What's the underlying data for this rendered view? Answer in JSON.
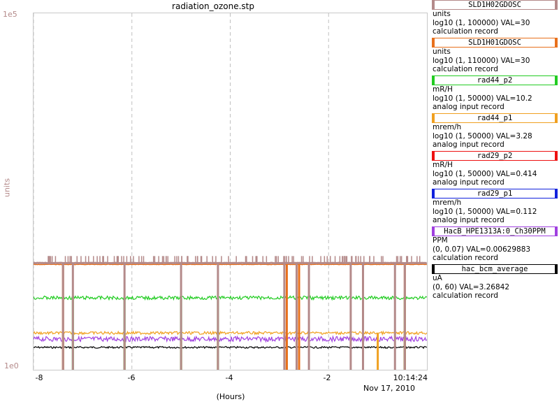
{
  "title": "radiation_ozone.stp",
  "y_axis": {
    "label": "units",
    "top": "1e5",
    "bottom": "1e0"
  },
  "x_axis": {
    "label": "(Hours)",
    "ticks": [
      "-8",
      "-6",
      "-4",
      "-2"
    ],
    "end_time": "10:14:24",
    "end_date": "Nov 17, 2010"
  },
  "legend": [
    {
      "name": "SLD1H02GDOSC",
      "color": "#b48a8a",
      "units": "units",
      "range": "log10 (1, 100000) VAL=30",
      "type": "calculation record"
    },
    {
      "name": "SLD1H01GDOSC",
      "color": "#e8701c",
      "units": "units",
      "range": "log10 (1, 110000) VAL=30",
      "type": "calculation record"
    },
    {
      "name": "rad44_p2",
      "color": "#22cc22",
      "units": "mR/H",
      "range": "log10 (1, 50000) VAL=10.2",
      "type": "analog input record"
    },
    {
      "name": "rad44_p1",
      "color": "#f0a020",
      "units": "mrem/h",
      "range": "log10 (1, 50000) VAL=3.28",
      "type": "analog input record"
    },
    {
      "name": "rad29_p2",
      "color": "#ee1111",
      "units": "mR/H",
      "range": "log10 (1, 50000) VAL=0.414",
      "type": "analog input record"
    },
    {
      "name": "rad29_p1",
      "color": "#1122dd",
      "units": "mrem/h",
      "range": "log10 (1, 50000) VAL=0.112",
      "type": "analog input record"
    },
    {
      "name": "HacB_HPE1313A:0_Ch30PPM",
      "color": "#a040e0",
      "units": "PPM",
      "range": "(0, 0.07) VAL=0.00629883",
      "type": "calculation record"
    },
    {
      "name": "hac_bcm_average",
      "color": "#000000",
      "units": "uA",
      "range": "(0, 60) VAL=3.26842",
      "type": "calculation record"
    }
  ],
  "chart_data": {
    "type": "line",
    "title": "radiation_ozone.stp",
    "xlabel": "(Hours)",
    "ylabel": "units",
    "xlim": [
      -8,
      0
    ],
    "ylim": [
      1,
      100000
    ],
    "yscale": "log",
    "grid": true,
    "series": [
      {
        "name": "SLD1H02GDOSC",
        "color": "#b48a8a",
        "level": 30,
        "dropouts": [
          -7.4,
          -7.2,
          -6.15,
          -5.0,
          -4.25,
          -2.9,
          -2.65,
          -2.4,
          -1.55,
          -1.3,
          -0.65,
          -0.45
        ]
      },
      {
        "name": "SLD1H01GDOSC",
        "color": "#e8701c",
        "level": 30,
        "dropouts": [
          -7.4,
          -2.85,
          -2.6,
          -1.3,
          -0.45
        ]
      },
      {
        "name": "rad44_p2",
        "color": "#22cc22",
        "level": 10.2,
        "dropouts": [
          -7.2,
          -6.15,
          -5.0,
          -4.25,
          -2.65,
          -1.3,
          -0.45
        ]
      },
      {
        "name": "rad44_p1",
        "color": "#f0a020",
        "level": 3.28,
        "dropouts": [
          -7.4,
          -6.15,
          -5.0,
          -4.25,
          -2.85,
          -2.65,
          -1.3,
          -1.0,
          -0.45
        ]
      },
      {
        "name": "rad29_p2",
        "color": "#ee1111",
        "level": 0.414,
        "dropouts": []
      },
      {
        "name": "rad29_p1",
        "color": "#1122dd",
        "level": 0.112,
        "dropouts": []
      },
      {
        "name": "HacB_HPE1313A:0_Ch30PPM",
        "color": "#a040e0",
        "level": 0.00629883,
        "range": [
          0,
          0.07
        ],
        "dropouts": []
      },
      {
        "name": "hac_bcm_average",
        "color": "#000000",
        "level": 3.26842,
        "range": [
          0,
          60
        ],
        "dropouts": [
          -2.85,
          -1.3,
          -0.45
        ]
      }
    ]
  }
}
